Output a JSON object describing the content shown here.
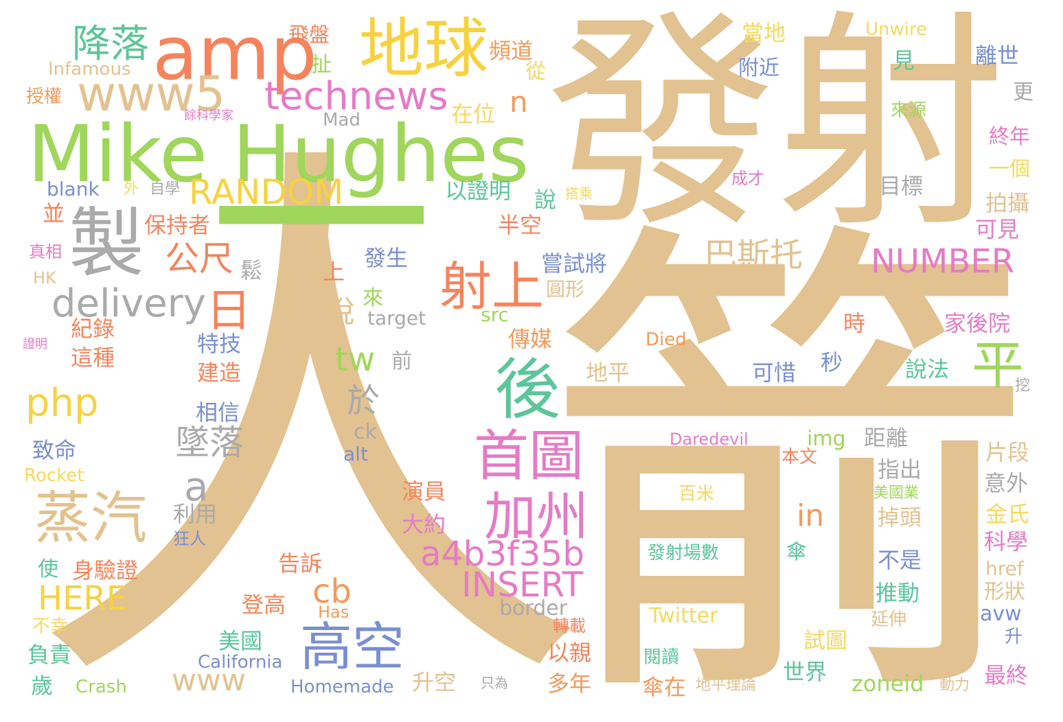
{
  "palette": {
    "tan": "#e2c290",
    "green": "#9fd65b",
    "salmon": "#f5845c",
    "yellow": "#f7d23f",
    "pink": "#e57bc6",
    "gray": "#aaaaaa",
    "teal": "#5dc59b",
    "blue": "#7a8fcf",
    "orange": "#f19b5c",
    "lightyellow": "#f6d85e"
  },
  "words": [
    {
      "text": "人",
      "color": "tan"
    },
    {
      "text": "發射",
      "color": "tan"
    },
    {
      "text": "箭",
      "color": "tan"
    },
    {
      "text": "Mike Hughes",
      "color": "green"
    },
    {
      "text": "一",
      "color": "green"
    },
    {
      "text": "amp",
      "color": "salmon"
    },
    {
      "text": "地球",
      "color": "yellow"
    },
    {
      "text": "製",
      "color": "gray"
    },
    {
      "text": "www5",
      "color": "tan"
    },
    {
      "text": "technews",
      "color": "pink"
    },
    {
      "text": "降落",
      "color": "teal"
    },
    {
      "text": "RANDOM",
      "color": "yellow"
    },
    {
      "text": "delivery",
      "color": "gray"
    },
    {
      "text": "日",
      "color": "salmon"
    },
    {
      "text": "射上",
      "color": "salmon"
    },
    {
      "text": "平",
      "color": "green"
    },
    {
      "text": "後",
      "color": "teal"
    },
    {
      "text": "首圖",
      "color": "pink"
    },
    {
      "text": "加州",
      "color": "pink"
    },
    {
      "text": "蒸汽",
      "color": "tan"
    },
    {
      "text": "高空",
      "color": "blue"
    },
    {
      "text": "php",
      "color": "yellow"
    },
    {
      "text": "a4b3f35b",
      "color": "pink"
    },
    {
      "text": "INSERT",
      "color": "pink"
    },
    {
      "text": "NUMBER",
      "color": "pink"
    },
    {
      "text": "巴斯托",
      "color": "tan"
    },
    {
      "text": "公尺",
      "color": "salmon"
    },
    {
      "text": "墜落",
      "color": "gray"
    },
    {
      "text": "a",
      "color": "gray"
    },
    {
      "text": "tw",
      "color": "green"
    },
    {
      "text": "於",
      "color": "gray"
    },
    {
      "text": "HERE",
      "color": "yellow"
    },
    {
      "text": "cb",
      "color": "orange"
    },
    {
      "text": "in",
      "color": "orange"
    },
    {
      "text": "www",
      "color": "tan"
    },
    {
      "text": "n",
      "color": "orange"
    },
    {
      "text": "保持者",
      "color": "salmon"
    },
    {
      "text": "脫",
      "color": "tan"
    },
    {
      "text": "嘗試將",
      "color": "blue"
    },
    {
      "text": "飛盤",
      "color": "salmon"
    },
    {
      "text": "頻道",
      "color": "orange"
    },
    {
      "text": "當地",
      "color": "lightyellow"
    },
    {
      "text": "Unwire",
      "color": "lightyellow"
    },
    {
      "text": "離世",
      "color": "blue"
    },
    {
      "text": "見",
      "color": "teal"
    },
    {
      "text": "附近",
      "color": "blue"
    },
    {
      "text": "Infamous",
      "color": "tan"
    },
    {
      "text": "扯",
      "color": "green"
    },
    {
      "text": "從",
      "color": "lightyellow"
    },
    {
      "text": "授權",
      "color": "orange"
    },
    {
      "text": "餘科學家",
      "color": "pink"
    },
    {
      "text": "Mad",
      "color": "gray"
    },
    {
      "text": "在位",
      "color": "lightyellow"
    },
    {
      "text": "來源",
      "color": "green"
    },
    {
      "text": "更",
      "color": "gray"
    },
    {
      "text": "終年",
      "color": "pink"
    },
    {
      "text": "一個",
      "color": "lightyellow"
    },
    {
      "text": "成才",
      "color": "pink"
    },
    {
      "text": "目標",
      "color": "gray"
    },
    {
      "text": "拍攝",
      "color": "tan"
    },
    {
      "text": "可見",
      "color": "pink"
    },
    {
      "text": "blank",
      "color": "blue"
    },
    {
      "text": "外",
      "color": "lightyellow"
    },
    {
      "text": "自學",
      "color": "gray"
    },
    {
      "text": "搭乘",
      "color": "lightyellow"
    },
    {
      "text": "以證明",
      "color": "teal"
    },
    {
      "text": "說",
      "color": "teal"
    },
    {
      "text": "並",
      "color": "salmon"
    },
    {
      "text": "半空",
      "color": "salmon"
    },
    {
      "text": "真相",
      "color": "pink"
    },
    {
      "text": "HK",
      "color": "tan"
    },
    {
      "text": "鬆",
      "color": "gray"
    },
    {
      "text": "上",
      "color": "salmon"
    },
    {
      "text": "發生",
      "color": "blue"
    },
    {
      "text": "來",
      "color": "green"
    },
    {
      "text": "圓形",
      "color": "tan"
    },
    {
      "text": "紀錄",
      "color": "salmon"
    },
    {
      "text": "target",
      "color": "gray"
    },
    {
      "text": "src",
      "color": "green"
    },
    {
      "text": "時",
      "color": "salmon"
    },
    {
      "text": "家後院",
      "color": "pink"
    },
    {
      "text": "證明",
      "color": "pink"
    },
    {
      "text": "這種",
      "color": "salmon"
    },
    {
      "text": "特技",
      "color": "blue"
    },
    {
      "text": "建造",
      "color": "salmon"
    },
    {
      "text": "傳媒",
      "color": "orange"
    },
    {
      "text": "Died",
      "color": "orange"
    },
    {
      "text": "前",
      "color": "gray"
    },
    {
      "text": "地平",
      "color": "tan"
    },
    {
      "text": "可惜",
      "color": "blue"
    },
    {
      "text": "秒",
      "color": "blue"
    },
    {
      "text": "說法",
      "color": "teal"
    },
    {
      "text": "挖",
      "color": "gray"
    },
    {
      "text": "相信",
      "color": "blue"
    },
    {
      "text": "ck",
      "color": "gray"
    },
    {
      "text": "Daredevil",
      "color": "pink"
    },
    {
      "text": "img",
      "color": "green"
    },
    {
      "text": "距離",
      "color": "gray"
    },
    {
      "text": "致命",
      "color": "blue"
    },
    {
      "text": "alt",
      "color": "blue"
    },
    {
      "text": "本文",
      "color": "salmon"
    },
    {
      "text": "片段",
      "color": "tan"
    },
    {
      "text": "Rocket",
      "color": "lightyellow"
    },
    {
      "text": "指出",
      "color": "gray"
    },
    {
      "text": "意外",
      "color": "gray"
    },
    {
      "text": "百米",
      "color": "lightyellow"
    },
    {
      "text": "演員",
      "color": "salmon"
    },
    {
      "text": "美國業",
      "color": "green"
    },
    {
      "text": "利用",
      "color": "gray"
    },
    {
      "text": "金氏",
      "color": "lightyellow"
    },
    {
      "text": "大約",
      "color": "pink"
    },
    {
      "text": "掉頭",
      "color": "tan"
    },
    {
      "text": "狂人",
      "color": "blue"
    },
    {
      "text": "科學",
      "color": "pink"
    },
    {
      "text": "發射場數",
      "color": "teal"
    },
    {
      "text": "傘",
      "color": "teal"
    },
    {
      "text": "使",
      "color": "teal"
    },
    {
      "text": "身驗證",
      "color": "salmon"
    },
    {
      "text": "告訴",
      "color": "salmon"
    },
    {
      "text": "不是",
      "color": "blue"
    },
    {
      "text": "href",
      "color": "tan"
    },
    {
      "text": "形狀",
      "color": "tan"
    },
    {
      "text": "推動",
      "color": "teal"
    },
    {
      "text": "登高",
      "color": "salmon"
    },
    {
      "text": "Has",
      "color": "orange"
    },
    {
      "text": "border",
      "color": "gray"
    },
    {
      "text": "avw",
      "color": "blue"
    },
    {
      "text": "Twitter",
      "color": "lightyellow"
    },
    {
      "text": "延伸",
      "color": "tan"
    },
    {
      "text": "不幸",
      "color": "lightyellow"
    },
    {
      "text": "轉載",
      "color": "salmon"
    },
    {
      "text": "美國",
      "color": "teal"
    },
    {
      "text": "試圖",
      "color": "lightyellow"
    },
    {
      "text": "升",
      "color": "blue"
    },
    {
      "text": "負責",
      "color": "teal"
    },
    {
      "text": "以親",
      "color": "salmon"
    },
    {
      "text": "閱讀",
      "color": "teal"
    },
    {
      "text": "California",
      "color": "blue"
    },
    {
      "text": "世界",
      "color": "teal"
    },
    {
      "text": "最終",
      "color": "pink"
    },
    {
      "text": "歲",
      "color": "teal"
    },
    {
      "text": "Crash",
      "color": "green"
    },
    {
      "text": "Homemade",
      "color": "blue"
    },
    {
      "text": "升空",
      "color": "tan"
    },
    {
      "text": "只為",
      "color": "gray"
    },
    {
      "text": "多年",
      "color": "orange"
    },
    {
      "text": "傘在",
      "color": "orange"
    },
    {
      "text": "地平理論",
      "color": "tan"
    },
    {
      "text": "zoneid",
      "color": "green"
    },
    {
      "text": "動力",
      "color": "tan"
    }
  ]
}
